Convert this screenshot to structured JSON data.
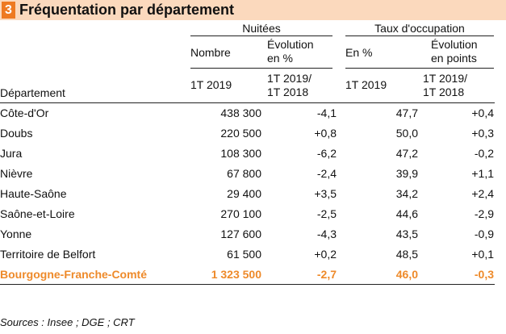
{
  "title": {
    "number": "3",
    "text": "Fréquentation par département"
  },
  "headers": {
    "group_nuitees": "Nuitées",
    "group_taux": "Taux d'occupation",
    "nombre": "Nombre",
    "evolution_pct_1": "Évolution",
    "evolution_pct_2": "en %",
    "en_pct": "En %",
    "evolution_pts_1": "Évolution",
    "evolution_pts_2": "en points",
    "departement": "Département",
    "period_1": "1T 2019",
    "period_2a": "1T 2019/",
    "period_2b": "1T 2018",
    "period_3": "1T 2019",
    "period_4a": "1T 2019/",
    "period_4b": "1T 2018"
  },
  "rows": [
    {
      "dept": "Côte-d'Or",
      "nombre": "438 300",
      "evol": "-4,1",
      "taux": "47,7",
      "evol_pts": "+0,4"
    },
    {
      "dept": "Doubs",
      "nombre": "220 500",
      "evol": "+0,8",
      "taux": "50,0",
      "evol_pts": "+0,3"
    },
    {
      "dept": "Jura",
      "nombre": "108 300",
      "evol": "-6,2",
      "taux": "47,2",
      "evol_pts": "-0,2"
    },
    {
      "dept": "Nièvre",
      "nombre": "67 800",
      "evol": "-2,4",
      "taux": "39,9",
      "evol_pts": "+1,1"
    },
    {
      "dept": "Haute-Saône",
      "nombre": "29 400",
      "evol": "+3,5",
      "taux": "34,2",
      "evol_pts": "+2,4"
    },
    {
      "dept": "Saône-et-Loire",
      "nombre": "270 100",
      "evol": "-2,5",
      "taux": "44,6",
      "evol_pts": "-2,9"
    },
    {
      "dept": "Yonne",
      "nombre": "127 600",
      "evol": "-4,3",
      "taux": "43,5",
      "evol_pts": "-0,9"
    },
    {
      "dept": "Territoire de Belfort",
      "nombre": "61 500",
      "evol": "+0,2",
      "taux": "48,5",
      "evol_pts": "+0,1"
    }
  ],
  "total": {
    "dept": "Bourgogne-Franche-Comté",
    "nombre": "1 323 500",
    "evol": "-2,7",
    "taux": "46,0",
    "evol_pts": "-0,3"
  },
  "source": "Sources : Insee ; DGE ; CRT",
  "colors": {
    "accent": "#ee7a22",
    "title_bg": "#fbd9bd",
    "total_text": "#ee8a2a"
  }
}
